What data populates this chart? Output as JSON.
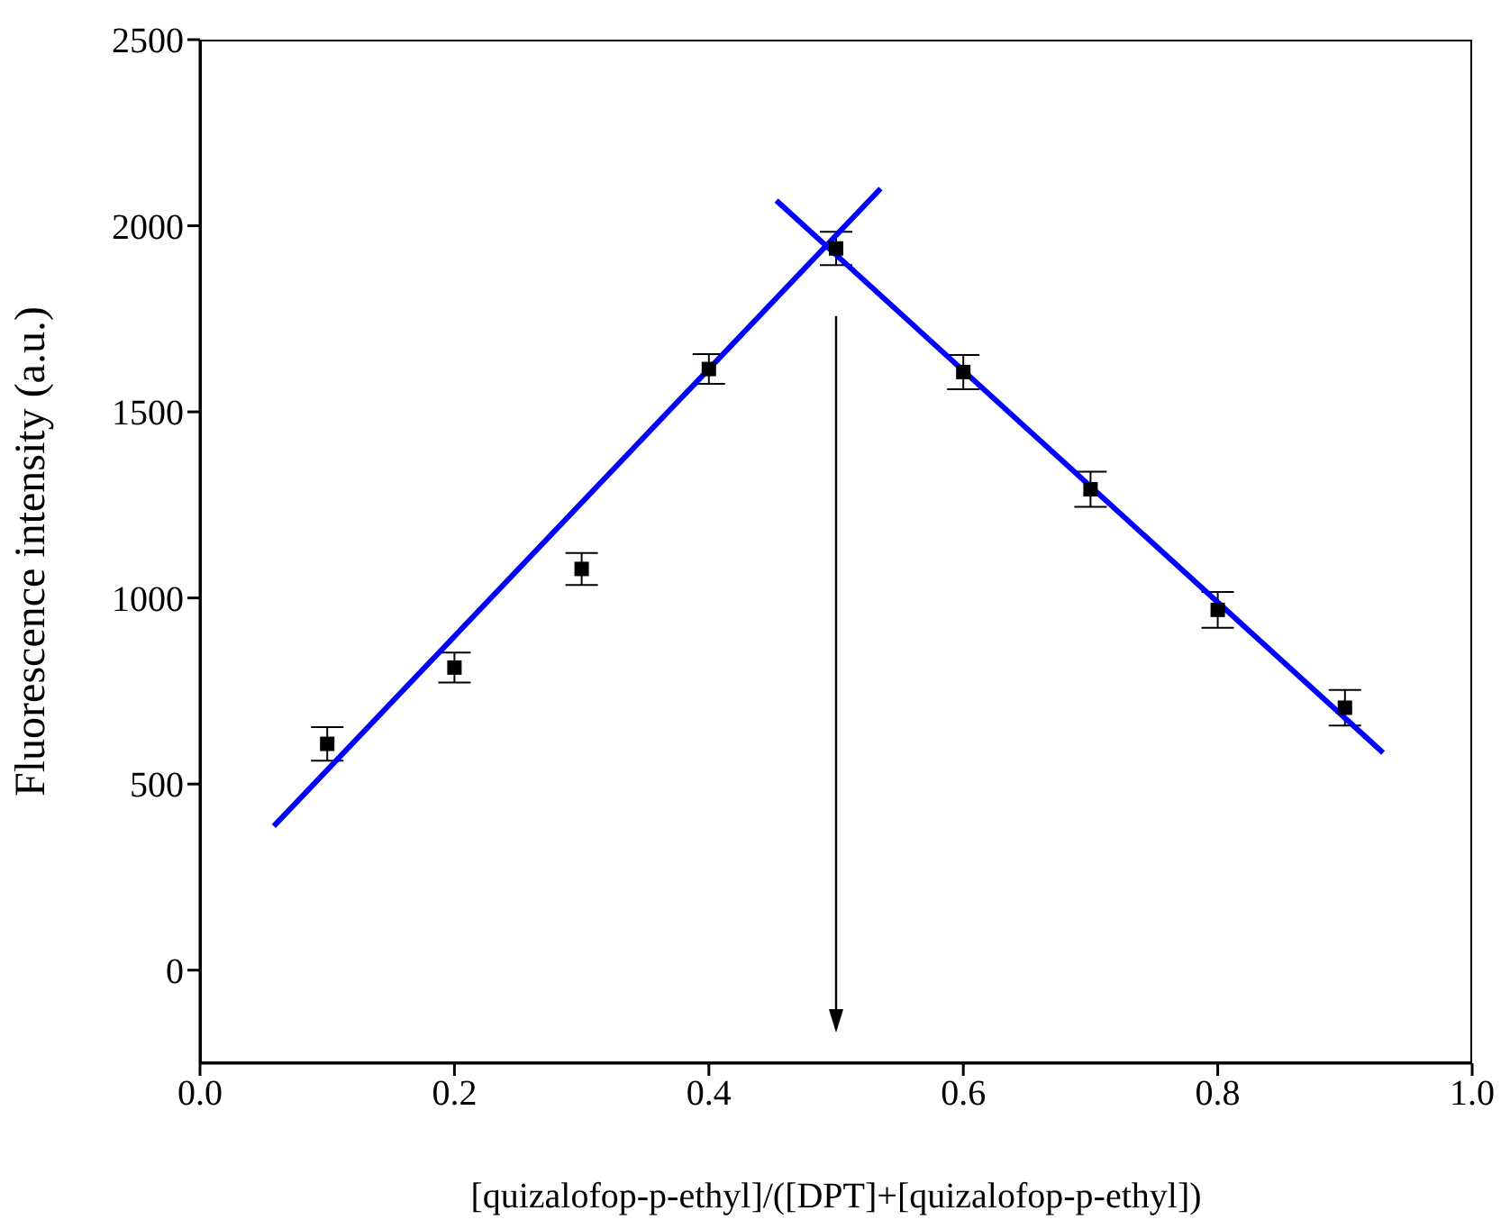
{
  "chart_data": {
    "type": "scatter",
    "xlabel": "[quizalofop-p-ethyl]/([DPT]+[quizalofop-p-ethyl])",
    "ylabel": "Fluorescence intensity (a.u.)",
    "x": [
      0.1,
      0.2,
      0.3,
      0.4,
      0.5,
      0.6,
      0.7,
      0.8,
      0.9
    ],
    "series": [
      {
        "color": "#000000",
        "marker": "square",
        "values": [
          608,
          813,
          1078,
          1615,
          1939,
          1607,
          1292,
          968,
          705
        ],
        "errors": [
          45,
          40,
          43,
          40,
          45,
          46,
          47,
          48,
          48
        ]
      },
      {
        "type": "line",
        "color": "#0000ff",
        "x": [
          0.058,
          0.535
        ],
        "values": [
          387,
          2100
        ]
      },
      {
        "type": "line",
        "color": "#0000ff",
        "x": [
          0.453,
          0.93
        ],
        "values": [
          2068,
          584
        ]
      }
    ],
    "ref_lines": [
      {
        "axis": "x",
        "value": 0.5,
        "color": "#000000"
      }
    ],
    "xlim": [
      0,
      1
    ],
    "xticks": [
      {
        "value": 0,
        "label": "0.0"
      },
      {
        "value": 0.2,
        "label": "0.2"
      },
      {
        "value": 0.4,
        "label": "0.4"
      },
      {
        "value": 0.6,
        "label": "0.6"
      },
      {
        "value": 0.8,
        "label": "0.8"
      },
      {
        "value": 1,
        "label": "1.0"
      }
    ],
    "ylim": [
      -250,
      2500
    ],
    "yticks": [
      0,
      500,
      1000,
      1500,
      2000,
      2500
    ],
    "grid": false,
    "legend": false
  }
}
